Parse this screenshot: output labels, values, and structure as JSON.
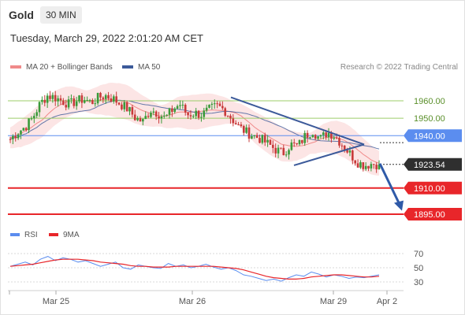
{
  "header": {
    "instrument": "Gold",
    "timeframe": "30 MIN",
    "datetime": "Tuesday, March 29, 2022 2:01:20 AM CET"
  },
  "legend": {
    "bollinger_label": "MA 20 + Bollinger Bands",
    "ma50_label": "MA 50",
    "copyright": "Research © 2022 Trading Central"
  },
  "colors": {
    "bollinger": "#f08a8a",
    "ma50": "#3c5a9a",
    "candle_up": "#3a9a3a",
    "candle_down": "#c83a3a",
    "resistance": "#9ccd6a",
    "pivot": "#5b8def",
    "support": "#e8262a",
    "last_price_bg": "#2f2f2f",
    "rsi": "#5b8def",
    "rsi_ma": "#e8262a"
  },
  "chart_data": [
    {
      "type": "candlestick",
      "instrument": "Gold",
      "timeframe": "30 MIN",
      "ylim": [
        1880,
        1975
      ],
      "x_tick_labels": [
        "Mar 25",
        "Mar 26",
        "Mar 29",
        "Apr 2"
      ],
      "levels": [
        {
          "label": "1960.00",
          "value": 1960.0,
          "role": "resistance"
        },
        {
          "label": "1950.00",
          "value": 1950.0,
          "role": "resistance"
        },
        {
          "label": "1940.00",
          "value": 1940.0,
          "role": "pivot"
        },
        {
          "label": "1923.54",
          "value": 1923.54,
          "role": "last"
        },
        {
          "label": "1910.00",
          "value": 1910.0,
          "role": "support"
        },
        {
          "label": "1895.00",
          "value": 1895.0,
          "role": "support"
        }
      ],
      "price_path": [
        1938,
        1942,
        1945,
        1950,
        1958,
        1963,
        1962,
        1960,
        1958,
        1960,
        1961,
        1959,
        1962,
        1963,
        1961,
        1958,
        1955,
        1950,
        1948,
        1955,
        1953,
        1950,
        1955,
        1958,
        1952,
        1953,
        1952,
        1955,
        1957,
        1955,
        1950,
        1945,
        1942,
        1940,
        1938,
        1935,
        1932,
        1930,
        1935,
        1934,
        1940,
        1943,
        1938,
        1942,
        1940,
        1935,
        1930,
        1925,
        1923,
        1924,
        1923.54
      ],
      "triangle": [
        [
          1957,
          1930
        ],
        [
          1957,
          1950
        ],
        [
          1940,
          1950
        ],
        [
          1935,
          1950
        ]
      ],
      "forecast": [
        1924,
        1897
      ]
    },
    {
      "type": "line",
      "legend": [
        "RSI",
        "9MA"
      ],
      "ylim": [
        20,
        80
      ],
      "y_ticks": [
        "70",
        "50",
        "30"
      ],
      "rsi": [
        52,
        55,
        58,
        54,
        62,
        66,
        60,
        64,
        62,
        58,
        60,
        56,
        52,
        55,
        58,
        50,
        48,
        54,
        52,
        50,
        49,
        56,
        52,
        54,
        50,
        52,
        55,
        51,
        48,
        50,
        46,
        40,
        38,
        35,
        32,
        34,
        31,
        36,
        40,
        38,
        44,
        41,
        37,
        40,
        38,
        35,
        37,
        36,
        38,
        40
      ],
      "ma9": [
        52,
        53,
        54,
        55,
        57,
        59,
        61,
        62,
        62,
        62,
        61,
        60,
        58,
        57,
        56,
        55,
        53,
        52,
        52,
        51,
        51,
        51,
        52,
        52,
        52,
        52,
        52,
        52,
        51,
        50,
        49,
        47,
        44,
        41,
        38,
        36,
        35,
        34,
        34,
        35,
        37,
        38,
        39,
        40,
        40,
        39,
        38,
        37,
        37,
        38
      ]
    }
  ]
}
